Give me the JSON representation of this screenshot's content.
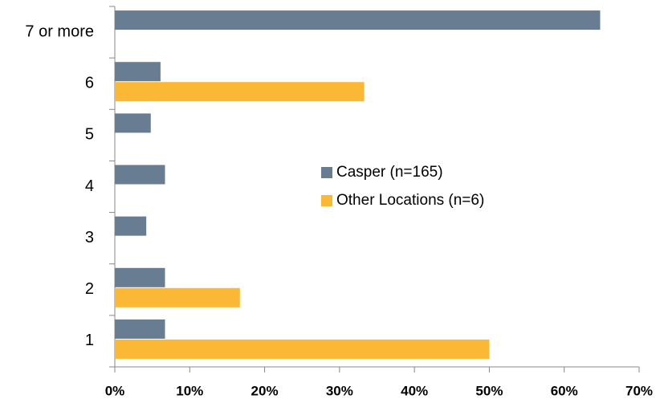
{
  "chart_data": {
    "type": "hbar",
    "categories": [
      "1",
      "2",
      "3",
      "4",
      "5",
      "6",
      "7 or more"
    ],
    "series": [
      {
        "name": "Casper (n=165)",
        "color": "#687d92",
        "values": [
          6.7,
          6.7,
          4.2,
          6.7,
          4.8,
          6.1,
          64.8
        ]
      },
      {
        "name": "Other Locations (n=6)",
        "color": "#fbb834",
        "values": [
          50,
          16.7,
          0,
          0,
          0,
          33.3,
          0
        ]
      }
    ],
    "xlim": [
      0,
      70
    ],
    "xticks": [
      {
        "value": 0,
        "label": "0%"
      },
      {
        "value": 10,
        "label": "10%"
      },
      {
        "value": 20,
        "label": "20%"
      },
      {
        "value": 30,
        "label": "30%"
      },
      {
        "value": 40,
        "label": "40%"
      },
      {
        "value": 50,
        "label": "50%"
      },
      {
        "value": 60,
        "label": "60%"
      },
      {
        "value": 70,
        "label": "70%"
      }
    ],
    "legend": "center"
  }
}
